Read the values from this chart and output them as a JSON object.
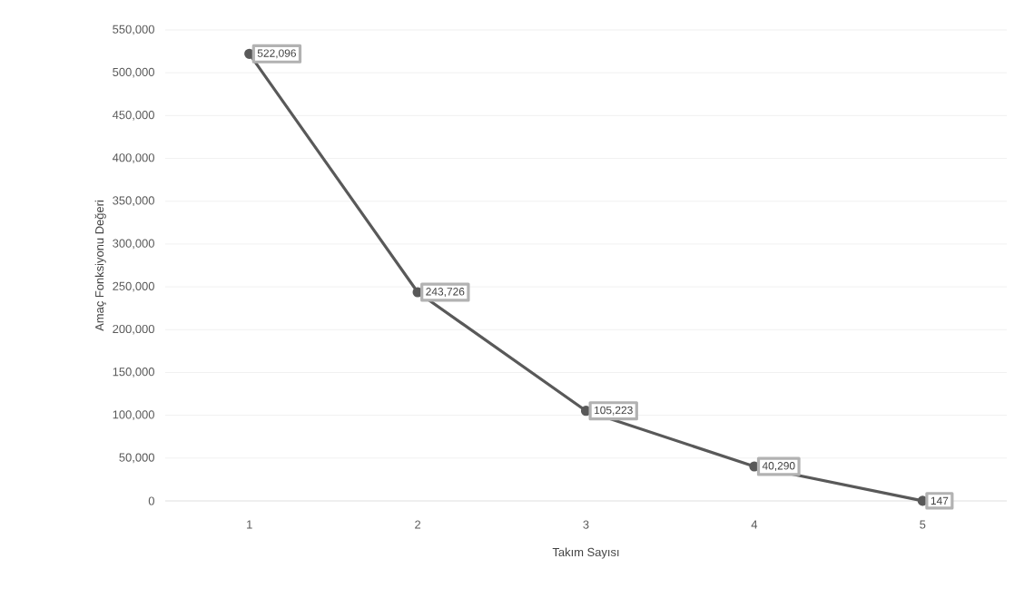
{
  "chart_data": {
    "type": "line",
    "xlabel": "Takım Sayısı",
    "ylabel": "Amaç Fonksiyonu Değeri",
    "categories": [
      "1",
      "2",
      "3",
      "4",
      "5"
    ],
    "series": [
      {
        "color": "#595959",
        "values": [
          522096,
          243726,
          105223,
          40290,
          147
        ],
        "value_labels": [
          "522,096",
          "243,726",
          "105,223",
          "40,290",
          "147"
        ]
      }
    ],
    "ylim": [
      0,
      550000
    ],
    "yticks": [
      {
        "value": 0,
        "label": "0"
      },
      {
        "value": 50000,
        "label": "50,000"
      },
      {
        "value": 100000,
        "label": "100,000"
      },
      {
        "value": 150000,
        "label": "150,000"
      },
      {
        "value": 200000,
        "label": "200,000"
      },
      {
        "value": 250000,
        "label": "250,000"
      },
      {
        "value": 300000,
        "label": "300,000"
      },
      {
        "value": 350000,
        "label": "350,000"
      },
      {
        "value": 400000,
        "label": "400,000"
      },
      {
        "value": 450000,
        "label": "450,000"
      },
      {
        "value": 500000,
        "label": "500,000"
      },
      {
        "value": 550000,
        "label": "550,000"
      }
    ],
    "grid": "y",
    "marker": "circle",
    "line_style": "solid"
  }
}
